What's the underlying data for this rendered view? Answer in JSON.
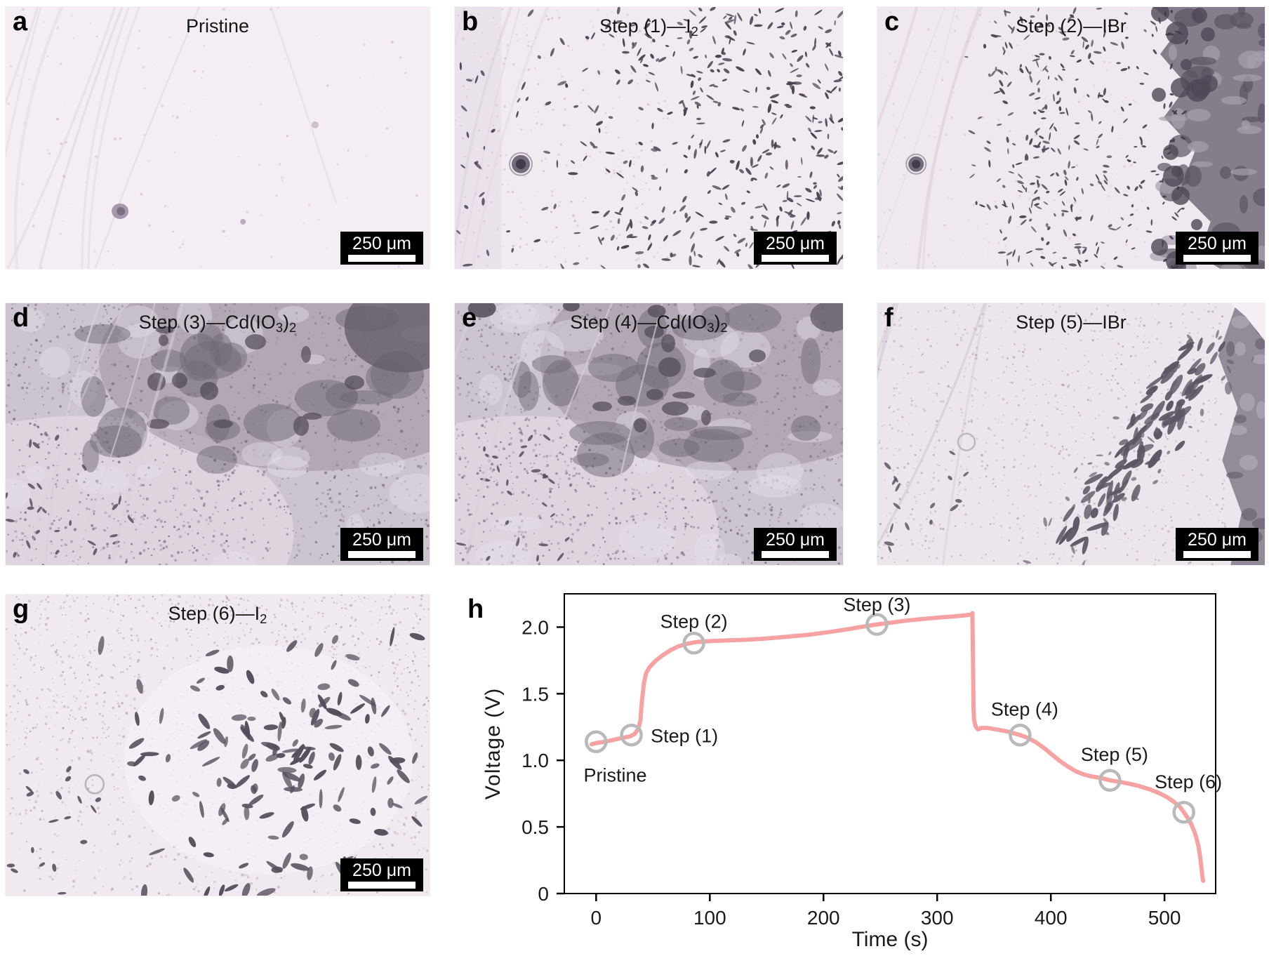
{
  "figure": {
    "chart_label": "h",
    "panels": [
      {
        "label": "a",
        "title_parts": [
          {
            "text": "Pristine"
          }
        ],
        "scale_bar": "250 μm",
        "style": "pristine",
        "seed": 11
      },
      {
        "label": "b",
        "title_parts": [
          {
            "text": "Step (1)—I"
          },
          {
            "sub": "2"
          }
        ],
        "scale_bar": "250 μm",
        "style": "grains-sparse",
        "seed": 22
      },
      {
        "label": "c",
        "title_parts": [
          {
            "text": "Step (2)—IBr"
          }
        ],
        "scale_bar": "250 μm",
        "style": "dark-right",
        "seed": 33
      },
      {
        "label": "d",
        "title_parts": [
          {
            "text": "Step (3)—Cd(IO"
          },
          {
            "sub": "3"
          },
          {
            "text": ")"
          },
          {
            "sub": "2"
          }
        ],
        "scale_bar": "250 μm",
        "style": "mottled",
        "seed": 44
      },
      {
        "label": "e",
        "title_parts": [
          {
            "text": "Step (4)—Cd(IO"
          },
          {
            "sub": "3"
          },
          {
            "text": ")"
          },
          {
            "sub": "2"
          }
        ],
        "scale_bar": "250 μm",
        "style": "mottled2",
        "seed": 55
      },
      {
        "label": "f",
        "title_parts": [
          {
            "text": "Step (5)—IBr"
          }
        ],
        "scale_bar": "250 μm",
        "style": "cluster-right",
        "seed": 66
      },
      {
        "label": "g",
        "title_parts": [
          {
            "text": "Step (6)—I"
          },
          {
            "sub": "2"
          }
        ],
        "scale_bar": "250 μm",
        "style": "cluster-wide",
        "seed": 77
      }
    ]
  },
  "chart_data": {
    "type": "line",
    "title": "",
    "xlabel": "Time (s)",
    "ylabel": "Voltage (V)",
    "xlim": [
      -28,
      545
    ],
    "ylim": [
      0,
      2.25
    ],
    "grid": false,
    "legend": "none",
    "xtick_values": [
      0,
      100,
      200,
      300,
      400,
      500
    ],
    "xtick_labels": [
      "0",
      "100",
      "200",
      "300",
      "400",
      "500"
    ],
    "ytick_values": [
      0,
      0.5,
      1.0,
      1.5,
      2.0
    ],
    "ytick_labels": [
      "0",
      "0.5",
      "1.0",
      "1.5",
      "2.0"
    ],
    "line_color": "#f7a2a2",
    "marker_color": "#b9b9b9",
    "text_color": "#1a1a1a",
    "series": [
      {
        "name": "voltage",
        "points": [
          [
            -4,
            1.12
          ],
          [
            0,
            1.13
          ],
          [
            8,
            1.14
          ],
          [
            16,
            1.155
          ],
          [
            24,
            1.17
          ],
          [
            30,
            1.18
          ],
          [
            34,
            1.2
          ],
          [
            37,
            1.235
          ],
          [
            39,
            1.3
          ],
          [
            40,
            1.42
          ],
          [
            42,
            1.58
          ],
          [
            44,
            1.655
          ],
          [
            47,
            1.7
          ],
          [
            52,
            1.745
          ],
          [
            58,
            1.785
          ],
          [
            65,
            1.825
          ],
          [
            72,
            1.855
          ],
          [
            80,
            1.875
          ],
          [
            88,
            1.888
          ],
          [
            100,
            1.895
          ],
          [
            115,
            1.9
          ],
          [
            132,
            1.905
          ],
          [
            150,
            1.915
          ],
          [
            168,
            1.928
          ],
          [
            186,
            1.942
          ],
          [
            204,
            1.962
          ],
          [
            222,
            1.985
          ],
          [
            238,
            2.008
          ],
          [
            247,
            2.02
          ],
          [
            258,
            2.032
          ],
          [
            272,
            2.048
          ],
          [
            288,
            2.062
          ],
          [
            302,
            2.072
          ],
          [
            315,
            2.081
          ],
          [
            325,
            2.089
          ],
          [
            330,
            2.095
          ],
          [
            331,
            2.105
          ],
          [
            331.5,
            1.8
          ],
          [
            332,
            1.4
          ],
          [
            332.5,
            1.3
          ],
          [
            334,
            1.252
          ],
          [
            336,
            1.232
          ],
          [
            339,
            1.243
          ],
          [
            344,
            1.243
          ],
          [
            352,
            1.232
          ],
          [
            362,
            1.216
          ],
          [
            373,
            1.19
          ],
          [
            380,
            1.168
          ],
          [
            387,
            1.135
          ],
          [
            394,
            1.093
          ],
          [
            401,
            1.043
          ],
          [
            408,
            0.995
          ],
          [
            415,
            0.953
          ],
          [
            422,
            0.918
          ],
          [
            429,
            0.894
          ],
          [
            436,
            0.879
          ],
          [
            443,
            0.869
          ],
          [
            452,
            0.85
          ],
          [
            460,
            0.839
          ],
          [
            469,
            0.824
          ],
          [
            478,
            0.806
          ],
          [
            487,
            0.782
          ],
          [
            495,
            0.755
          ],
          [
            502,
            0.725
          ],
          [
            508,
            0.69
          ],
          [
            513,
            0.655
          ],
          [
            517,
            0.61
          ],
          [
            520,
            0.573
          ],
          [
            523,
            0.53
          ],
          [
            526,
            0.472
          ],
          [
            528,
            0.42
          ],
          [
            530,
            0.35
          ],
          [
            531.5,
            0.27
          ],
          [
            532.5,
            0.19
          ],
          [
            533.5,
            0.115
          ],
          [
            534,
            0.095
          ]
        ]
      }
    ],
    "annotations": [
      {
        "label": "Pristine",
        "t": 0,
        "v": 1.14,
        "label_t": -11,
        "label_v": 0.84,
        "anchor": "start"
      },
      {
        "label": "Step (1)",
        "t": 31,
        "v": 1.19,
        "label_t": 48,
        "label_v": 1.135,
        "anchor": "start"
      },
      {
        "label": "Step (2)",
        "t": 86,
        "v": 1.88,
        "label_t": 86,
        "label_v": 1.995,
        "anchor": "middle"
      },
      {
        "label": "Step (3)",
        "t": 247,
        "v": 2.02,
        "label_t": 247,
        "label_v": 2.12,
        "anchor": "middle"
      },
      {
        "label": "Step (4)",
        "t": 373,
        "v": 1.19,
        "label_t": 377,
        "label_v": 1.335,
        "anchor": "middle"
      },
      {
        "label": "Step (5)",
        "t": 452,
        "v": 0.85,
        "label_t": 456,
        "label_v": 0.995,
        "anchor": "middle"
      },
      {
        "label": "Step (6)",
        "t": 517,
        "v": 0.61,
        "label_t": 521,
        "label_v": 0.79,
        "anchor": "middle"
      }
    ]
  }
}
